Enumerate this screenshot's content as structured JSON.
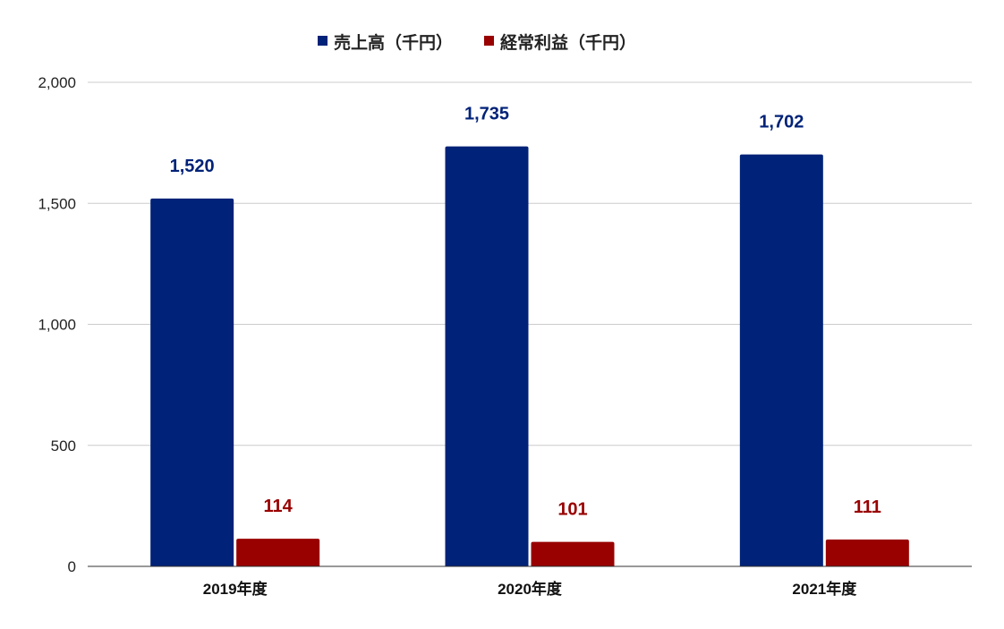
{
  "chart_data": {
    "type": "bar",
    "title": "",
    "xlabel": "",
    "ylabel": "",
    "categories": [
      "2019年度",
      "2020年度",
      "2021年度"
    ],
    "series": [
      {
        "name": "売上高（千円）",
        "color": "#002278",
        "values": [
          1520,
          1735,
          1702
        ],
        "labels": [
          "1,520",
          "1,735",
          "1,702"
        ]
      },
      {
        "name": "経常利益（千円）",
        "color": "#990000",
        "values": [
          114,
          101,
          111
        ],
        "labels": [
          "114",
          "101",
          "111"
        ]
      }
    ],
    "ylim": [
      0,
      2000
    ],
    "yticks": [
      0,
      500,
      1000,
      1500,
      2000
    ],
    "ytick_labels": [
      "0",
      "500",
      "1,000",
      "1,500",
      "2,000"
    ],
    "grid": true,
    "legend_position": "top-center"
  }
}
